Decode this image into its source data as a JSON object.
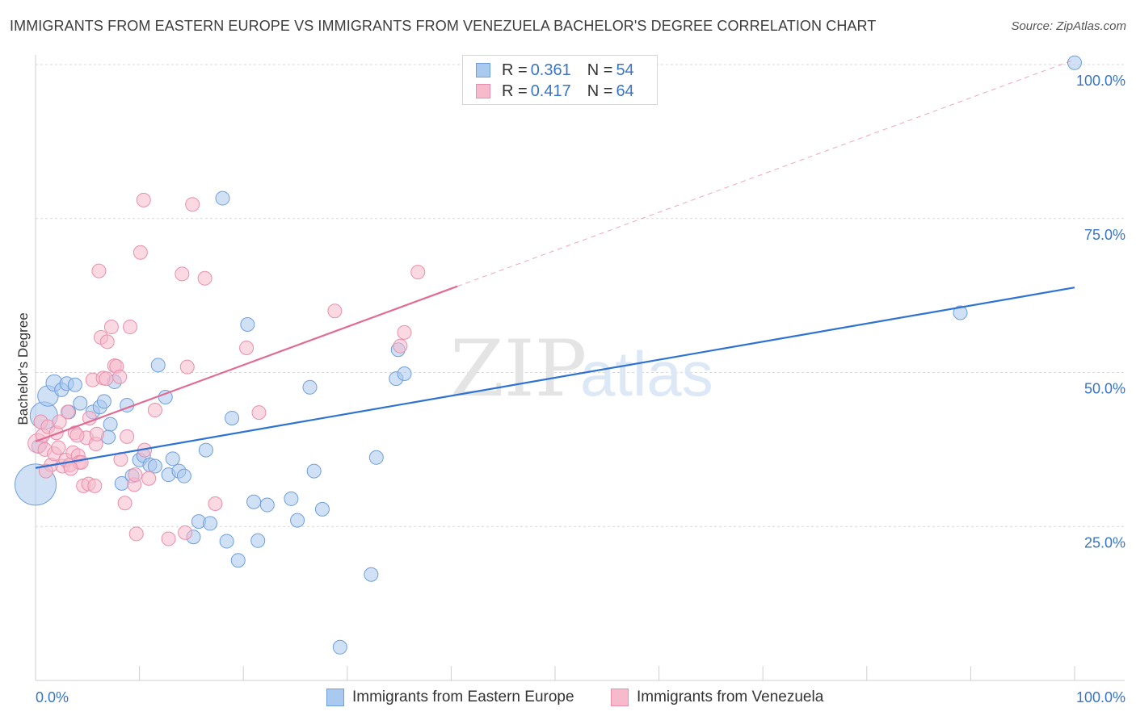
{
  "title": "IMMIGRANTS FROM EASTERN EUROPE VS IMMIGRANTS FROM VENEZUELA BACHELOR'S DEGREE CORRELATION CHART",
  "source": "Source: ZipAtlas.com",
  "watermark": {
    "zip": "ZIP",
    "atlas": "atlas"
  },
  "legend": {
    "r_label": "R =",
    "n_label": "N =",
    "rows": [
      {
        "r": "0.361",
        "n": "54"
      },
      {
        "r": "0.417",
        "n": "64"
      }
    ]
  },
  "colors": {
    "blue_fill": "#a9c9ef",
    "blue_stroke": "#6f9fdd",
    "blue_line": "#2e72d2",
    "pink_fill": "#f7b9cc",
    "pink_stroke": "#e98fab",
    "pink_line": "#e06b95",
    "axis_text": "#3a75c4",
    "grid": "#d9d9d9"
  },
  "chart_data": {
    "type": "scatter",
    "title": "IMMIGRANTS FROM EASTERN EUROPE VS IMMIGRANTS FROM VENEZUELA BACHELOR'S DEGREE CORRELATION CHART",
    "xlabel": "",
    "ylabel": "Bachelor's Degree",
    "xlim": [
      0,
      100
    ],
    "ylim": [
      0,
      102
    ],
    "x_tick_labels": [
      {
        "value": 0,
        "label": "0.0%"
      },
      {
        "value": 100,
        "label": "100.0%"
      }
    ],
    "y_tick_labels": [
      {
        "value": 25,
        "label": "25.0%"
      },
      {
        "value": 50,
        "label": "50.0%"
      },
      {
        "value": 75,
        "label": "75.0%"
      },
      {
        "value": 100,
        "label": "100.0%"
      }
    ],
    "x_minor_ticks": [
      0,
      10,
      20,
      30,
      40,
      50,
      60,
      70,
      80,
      90,
      100
    ],
    "grid": true,
    "legend_position": "top-center",
    "series": [
      {
        "name": "Immigrants from Eastern Europe",
        "color": "blue",
        "r": 0.361,
        "n": 54,
        "trend": {
          "x": [
            0,
            100
          ],
          "y": [
            34.5,
            63.8
          ],
          "dashed_extension": false
        },
        "points": [
          {
            "x": 0.0,
            "y": 31.8,
            "s": 3
          },
          {
            "x": 0.8,
            "y": 43.0,
            "s": 2
          },
          {
            "x": 1.2,
            "y": 46.2,
            "s": 1.5
          },
          {
            "x": 1.8,
            "y": 48.3,
            "s": 1.2
          },
          {
            "x": 2.5,
            "y": 47.2,
            "s": 1
          },
          {
            "x": 3.0,
            "y": 48.2,
            "s": 1
          },
          {
            "x": 3.2,
            "y": 43.6,
            "s": 1
          },
          {
            "x": 3.8,
            "y": 48.0,
            "s": 1
          },
          {
            "x": 4.3,
            "y": 45.0,
            "s": 1
          },
          {
            "x": 5.5,
            "y": 43.6,
            "s": 1
          },
          {
            "x": 6.2,
            "y": 44.4,
            "s": 1
          },
          {
            "x": 6.6,
            "y": 45.3,
            "s": 1
          },
          {
            "x": 7.2,
            "y": 41.6,
            "s": 1
          },
          {
            "x": 7.6,
            "y": 48.5,
            "s": 1
          },
          {
            "x": 8.3,
            "y": 32.0,
            "s": 1
          },
          {
            "x": 8.8,
            "y": 44.7,
            "s": 1
          },
          {
            "x": 9.3,
            "y": 33.2,
            "s": 1
          },
          {
            "x": 10.0,
            "y": 35.8,
            "s": 1
          },
          {
            "x": 10.4,
            "y": 36.5,
            "s": 1
          },
          {
            "x": 11.0,
            "y": 35.0,
            "s": 1
          },
          {
            "x": 11.5,
            "y": 34.8,
            "s": 1
          },
          {
            "x": 11.8,
            "y": 51.2,
            "s": 1
          },
          {
            "x": 12.5,
            "y": 46.0,
            "s": 1
          },
          {
            "x": 12.8,
            "y": 33.4,
            "s": 1
          },
          {
            "x": 13.2,
            "y": 36.0,
            "s": 1
          },
          {
            "x": 13.8,
            "y": 34.0,
            "s": 1
          },
          {
            "x": 14.3,
            "y": 33.2,
            "s": 1
          },
          {
            "x": 15.2,
            "y": 23.3,
            "s": 1
          },
          {
            "x": 15.7,
            "y": 25.8,
            "s": 1
          },
          {
            "x": 16.4,
            "y": 37.4,
            "s": 1
          },
          {
            "x": 16.8,
            "y": 25.5,
            "s": 1
          },
          {
            "x": 18.0,
            "y": 78.3,
            "s": 1
          },
          {
            "x": 18.4,
            "y": 22.6,
            "s": 1
          },
          {
            "x": 18.9,
            "y": 42.6,
            "s": 1
          },
          {
            "x": 19.5,
            "y": 19.5,
            "s": 1
          },
          {
            "x": 20.4,
            "y": 57.8,
            "s": 1
          },
          {
            "x": 21.0,
            "y": 29.0,
            "s": 1
          },
          {
            "x": 21.4,
            "y": 22.7,
            "s": 1
          },
          {
            "x": 22.3,
            "y": 28.5,
            "s": 1
          },
          {
            "x": 24.6,
            "y": 29.5,
            "s": 1
          },
          {
            "x": 25.2,
            "y": 26.0,
            "s": 1
          },
          {
            "x": 26.4,
            "y": 47.6,
            "s": 1
          },
          {
            "x": 26.8,
            "y": 34.0,
            "s": 1
          },
          {
            "x": 27.6,
            "y": 27.8,
            "s": 1
          },
          {
            "x": 29.3,
            "y": 5.4,
            "s": 1
          },
          {
            "x": 32.3,
            "y": 17.2,
            "s": 1
          },
          {
            "x": 32.8,
            "y": 36.2,
            "s": 1
          },
          {
            "x": 34.7,
            "y": 49.0,
            "s": 1
          },
          {
            "x": 34.9,
            "y": 53.7,
            "s": 1
          },
          {
            "x": 35.5,
            "y": 49.8,
            "s": 1
          },
          {
            "x": 89.0,
            "y": 59.7,
            "s": 1
          },
          {
            "x": 100.0,
            "y": 100.3,
            "s": 1
          },
          {
            "x": 0.3,
            "y": 38.0,
            "s": 1
          },
          {
            "x": 7.0,
            "y": 39.5,
            "s": 1
          }
        ]
      },
      {
        "name": "Immigrants from Venezuela",
        "color": "pink",
        "r": 0.417,
        "n": 64,
        "trend": {
          "x": [
            0,
            40.6
          ],
          "y": [
            38.8,
            64.0
          ],
          "dashed_extension": {
            "x": [
              40.6,
              100
            ],
            "y": [
              64.0,
              100.8
            ]
          }
        },
        "points": [
          {
            "x": 0.2,
            "y": 38.5,
            "s": 1.4
          },
          {
            "x": 0.5,
            "y": 42.0,
            "s": 1
          },
          {
            "x": 0.7,
            "y": 39.8,
            "s": 1
          },
          {
            "x": 0.9,
            "y": 37.5,
            "s": 1
          },
          {
            "x": 1.2,
            "y": 41.2,
            "s": 1
          },
          {
            "x": 1.5,
            "y": 35.0,
            "s": 1
          },
          {
            "x": 1.8,
            "y": 36.8,
            "s": 1
          },
          {
            "x": 2.0,
            "y": 40.2,
            "s": 1
          },
          {
            "x": 2.3,
            "y": 42.0,
            "s": 1
          },
          {
            "x": 2.6,
            "y": 34.8,
            "s": 1
          },
          {
            "x": 2.9,
            "y": 35.8,
            "s": 1
          },
          {
            "x": 3.1,
            "y": 43.6,
            "s": 1
          },
          {
            "x": 3.3,
            "y": 35.0,
            "s": 1
          },
          {
            "x": 3.6,
            "y": 37.0,
            "s": 1
          },
          {
            "x": 3.8,
            "y": 40.2,
            "s": 1
          },
          {
            "x": 4.1,
            "y": 36.5,
            "s": 1
          },
          {
            "x": 4.2,
            "y": 35.4,
            "s": 1
          },
          {
            "x": 4.4,
            "y": 35.4,
            "s": 1
          },
          {
            "x": 4.6,
            "y": 31.6,
            "s": 1
          },
          {
            "x": 4.9,
            "y": 39.4,
            "s": 1
          },
          {
            "x": 5.1,
            "y": 31.9,
            "s": 1
          },
          {
            "x": 5.2,
            "y": 42.6,
            "s": 1
          },
          {
            "x": 5.5,
            "y": 48.8,
            "s": 1
          },
          {
            "x": 5.7,
            "y": 31.6,
            "s": 1
          },
          {
            "x": 5.8,
            "y": 38.4,
            "s": 1
          },
          {
            "x": 5.9,
            "y": 40.0,
            "s": 1
          },
          {
            "x": 6.1,
            "y": 66.5,
            "s": 1
          },
          {
            "x": 6.3,
            "y": 55.7,
            "s": 1
          },
          {
            "x": 6.5,
            "y": 49.1,
            "s": 1
          },
          {
            "x": 6.8,
            "y": 49.0,
            "s": 1
          },
          {
            "x": 6.9,
            "y": 55.0,
            "s": 1
          },
          {
            "x": 7.3,
            "y": 57.4,
            "s": 1
          },
          {
            "x": 7.6,
            "y": 51.1,
            "s": 1
          },
          {
            "x": 7.8,
            "y": 51.0,
            "s": 1
          },
          {
            "x": 8.1,
            "y": 49.3,
            "s": 1
          },
          {
            "x": 8.2,
            "y": 35.9,
            "s": 1
          },
          {
            "x": 8.6,
            "y": 28.8,
            "s": 1
          },
          {
            "x": 8.8,
            "y": 39.6,
            "s": 1
          },
          {
            "x": 9.1,
            "y": 57.4,
            "s": 1
          },
          {
            "x": 9.5,
            "y": 31.8,
            "s": 1
          },
          {
            "x": 9.6,
            "y": 33.4,
            "s": 1
          },
          {
            "x": 9.7,
            "y": 23.8,
            "s": 1
          },
          {
            "x": 10.1,
            "y": 69.5,
            "s": 1
          },
          {
            "x": 10.4,
            "y": 78.0,
            "s": 1
          },
          {
            "x": 10.5,
            "y": 37.4,
            "s": 1
          },
          {
            "x": 10.9,
            "y": 32.8,
            "s": 1
          },
          {
            "x": 11.5,
            "y": 43.9,
            "s": 1
          },
          {
            "x": 12.8,
            "y": 23.0,
            "s": 1
          },
          {
            "x": 14.1,
            "y": 66.0,
            "s": 1
          },
          {
            "x": 14.4,
            "y": 24.0,
            "s": 1
          },
          {
            "x": 14.6,
            "y": 50.9,
            "s": 1
          },
          {
            "x": 15.1,
            "y": 77.3,
            "s": 1
          },
          {
            "x": 16.3,
            "y": 65.3,
            "s": 1
          },
          {
            "x": 17.3,
            "y": 28.7,
            "s": 1
          },
          {
            "x": 20.3,
            "y": 54.0,
            "s": 1
          },
          {
            "x": 21.5,
            "y": 43.5,
            "s": 1
          },
          {
            "x": 28.8,
            "y": 60.0,
            "s": 1
          },
          {
            "x": 35.1,
            "y": 54.3,
            "s": 1
          },
          {
            "x": 35.5,
            "y": 56.5,
            "s": 1
          },
          {
            "x": 36.8,
            "y": 66.3,
            "s": 1
          },
          {
            "x": 1.0,
            "y": 34.0,
            "s": 1
          },
          {
            "x": 2.2,
            "y": 37.8,
            "s": 1
          },
          {
            "x": 3.4,
            "y": 34.4,
            "s": 1
          },
          {
            "x": 4.0,
            "y": 39.8,
            "s": 1
          }
        ]
      }
    ]
  },
  "bottom_legend": [
    {
      "label": "Immigrants from Eastern Europe"
    },
    {
      "label": "Immigrants from Venezuela"
    }
  ]
}
